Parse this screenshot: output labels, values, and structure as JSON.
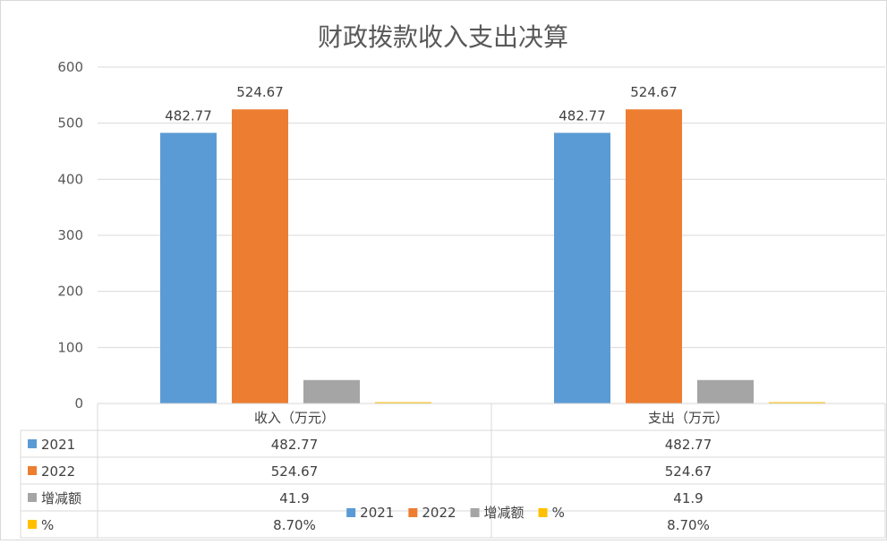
{
  "chart_data": {
    "type": "bar",
    "title": "财政拨款收入支出决算",
    "categories": [
      "收入（万元）",
      "支出（万元）"
    ],
    "ylim": [
      0,
      600
    ],
    "yticks": [
      "0",
      "100",
      "200",
      "300",
      "400",
      "500",
      "600"
    ],
    "grid": true,
    "legend_position": "bottom",
    "series": [
      {
        "name": "2021",
        "values": [
          482.77,
          482.77
        ],
        "labels": [
          "482.77",
          "482.77"
        ],
        "table": [
          "482.77",
          "482.77"
        ],
        "color": "#5b9bd5"
      },
      {
        "name": "2022",
        "values": [
          524.67,
          524.67
        ],
        "labels": [
          "524.67",
          "524.67"
        ],
        "table": [
          "524.67",
          "524.67"
        ],
        "color": "#ed7d31"
      },
      {
        "name": "增减额",
        "values": [
          41.9,
          41.9
        ],
        "labels": [
          "",
          ""
        ],
        "table": [
          "41.9",
          "41.9"
        ],
        "color": "#a5a5a5"
      },
      {
        "name": "%",
        "values": [
          0.087,
          0.087
        ],
        "labels": [
          "",
          ""
        ],
        "table": [
          "8.70%",
          "8.70%"
        ],
        "color": "#ffc000"
      }
    ]
  }
}
